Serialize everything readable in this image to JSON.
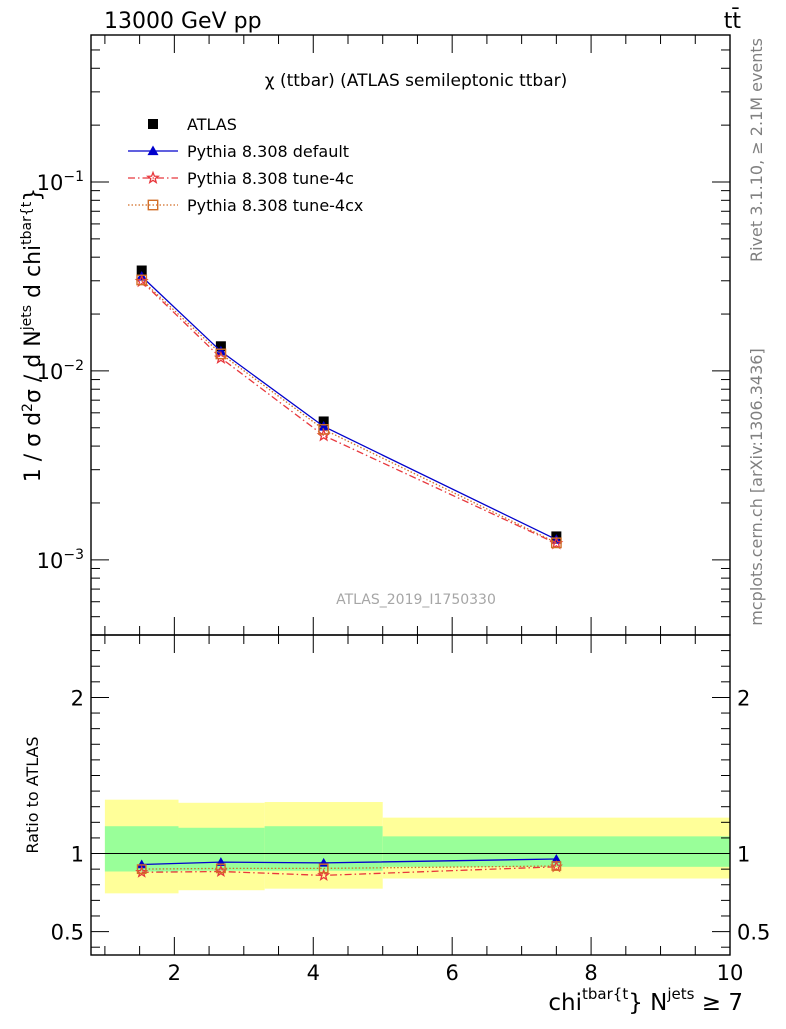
{
  "header": {
    "left": "13000 GeV pp",
    "right": "tt̄"
  },
  "side": {
    "rivet": "Rivet 3.1.10, ≥ 2.1M events",
    "mcplots": "mcplots.cern.ch [arXiv:1306.3436]"
  },
  "chart_data": [
    {
      "type": "scatter",
      "title": "χ (ttbar) (ATLAS semileptonic ttbar)",
      "watermark": "ATLAS_2019_I1750330",
      "ylabel": {
        "p1": "1 / σ d",
        "p1sup": "2",
        "p2": "σ / d N",
        "p2sup": "jets",
        "p3": " d chi",
        "p3sup": "tbar{t",
        "p4": "}"
      },
      "xlim": [
        0.8,
        10.0
      ],
      "ylim": [
        0.0004,
        0.6
      ],
      "yscale": "log",
      "yticks": [
        {
          "value": 0.1,
          "base": "10",
          "exp": "−1"
        },
        {
          "value": 0.01,
          "base": "10",
          "exp": "−2"
        },
        {
          "value": 0.001,
          "base": "10",
          "exp": "−3"
        }
      ],
      "legend_position": "top-left",
      "x": [
        1.53,
        2.67,
        4.15,
        7.5
      ],
      "series": [
        {
          "name": "ATLAS",
          "color": "#000000",
          "marker": "square",
          "values": [
            0.034,
            0.0135,
            0.0054,
            0.00133
          ]
        },
        {
          "name": "Pythia 8.308 default",
          "color": "#0000cc",
          "marker": "triangle",
          "line": "solid",
          "values": [
            0.0316,
            0.0127,
            0.00508,
            0.00128
          ]
        },
        {
          "name": "Pythia 8.308 tune-4c",
          "color": "#e8383d",
          "marker": "star",
          "line": "dashdot",
          "values": [
            0.0298,
            0.0117,
            0.00455,
            0.00122
          ]
        },
        {
          "name": "Pythia 8.308 tune-4cx",
          "color": "#d26e28",
          "marker": "opensquare",
          "line": "dotted",
          "values": [
            0.0303,
            0.0123,
            0.0049,
            0.00123
          ]
        }
      ]
    },
    {
      "type": "line",
      "ylabel": "Ratio to ATLAS",
      "xlabel": {
        "p1": "chi",
        "p1sup": "tbar{t",
        "p2": "} N",
        "p2sup": "jets",
        "p3": " ≥ 7"
      },
      "xlim": [
        0.8,
        10.0
      ],
      "ylim": [
        0.35,
        2.4
      ],
      "xticks": [
        {
          "value": 2,
          "label": "2"
        },
        {
          "value": 4,
          "label": "4"
        },
        {
          "value": 6,
          "label": "6"
        },
        {
          "value": 8,
          "label": "8"
        },
        {
          "value": 10,
          "label": "10"
        }
      ],
      "yticks": [
        {
          "value": 0.5,
          "label": "0.5"
        },
        {
          "value": 1,
          "label": "1"
        },
        {
          "value": 2,
          "label": "2"
        }
      ],
      "bins": [
        {
          "xmin": 1.0,
          "xmax": 2.06,
          "inner": [
            0.885,
            1.175
          ],
          "outer": [
            0.745,
            1.345
          ]
        },
        {
          "xmin": 2.06,
          "xmax": 3.3,
          "inner": [
            0.89,
            1.165
          ],
          "outer": [
            0.765,
            1.325
          ]
        },
        {
          "xmin": 3.3,
          "xmax": 5.0,
          "inner": [
            0.89,
            1.175
          ],
          "outer": [
            0.775,
            1.33
          ]
        },
        {
          "xmin": 5.0,
          "xmax": 10.0,
          "inner": [
            0.915,
            1.11
          ],
          "outer": [
            0.84,
            1.23
          ]
        }
      ],
      "colors": {
        "inner": "#99ff99",
        "outer": "#ffff99"
      },
      "x": [
        1.53,
        2.67,
        4.15,
        7.5
      ],
      "series": [
        {
          "name": "Pythia 8.308 default",
          "color": "#0000cc",
          "marker": "triangle",
          "line": "solid",
          "values": [
            0.93,
            0.945,
            0.94,
            0.965
          ]
        },
        {
          "name": "Pythia 8.308 tune-4c",
          "color": "#e8383d",
          "marker": "star",
          "line": "dashdot",
          "values": [
            0.88,
            0.885,
            0.86,
            0.915
          ]
        },
        {
          "name": "Pythia 8.308 tune-4cx",
          "color": "#d26e28",
          "marker": "opensquare",
          "line": "dotted",
          "values": [
            0.9,
            0.905,
            0.905,
            0.92
          ]
        }
      ]
    }
  ]
}
